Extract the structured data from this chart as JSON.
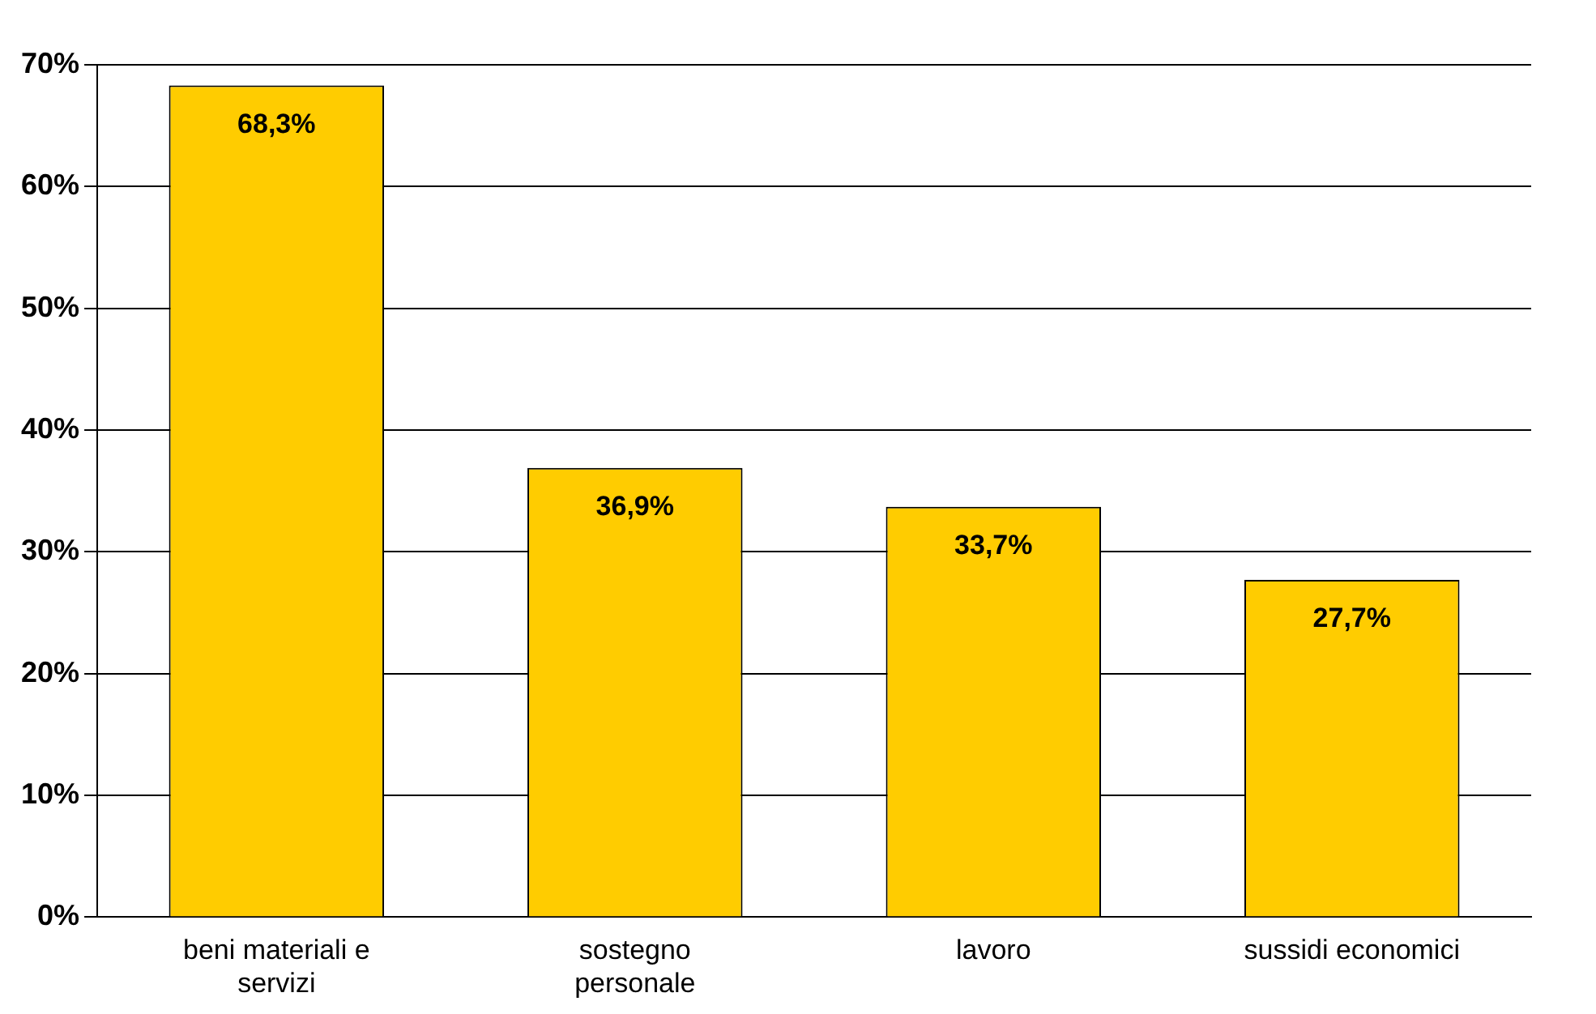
{
  "chart_data": {
    "type": "bar",
    "categories": [
      "beni materiali e servizi",
      "sostegno personale",
      "lavoro",
      "sussidi economici"
    ],
    "values": [
      68.3,
      36.9,
      33.7,
      27.7
    ],
    "value_labels": [
      "68,3%",
      "36,9%",
      "33,7%",
      "27,7%"
    ],
    "color": "#ffcc00",
    "ylim": [
      0,
      70
    ],
    "yticks": [
      {
        "value": 0,
        "label": "0%"
      },
      {
        "value": 10,
        "label": "10%"
      },
      {
        "value": 20,
        "label": "20%"
      },
      {
        "value": 30,
        "label": "30%"
      },
      {
        "value": 40,
        "label": "40%"
      },
      {
        "value": 50,
        "label": "50%"
      },
      {
        "value": 60,
        "label": "60%"
      },
      {
        "value": 70,
        "label": "70%"
      }
    ],
    "grid": "y",
    "legend": false
  }
}
